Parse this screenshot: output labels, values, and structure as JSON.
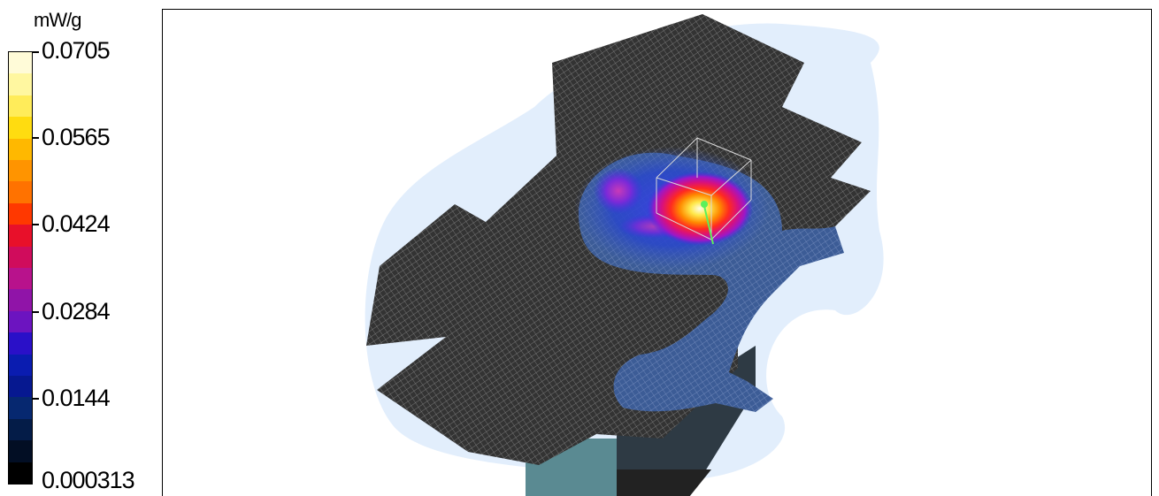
{
  "legend": {
    "unit": "mW/g",
    "ticks": [
      "0.0705",
      "0.0565",
      "0.0424",
      "0.0284",
      "0.0144",
      "0.000313"
    ],
    "colors": [
      "#fffbd8",
      "#fff7a0",
      "#ffec5a",
      "#ffdc10",
      "#ffb800",
      "#ff9400",
      "#ff7200",
      "#ff3800",
      "#e8102a",
      "#d00c5c",
      "#b8128c",
      "#9014a8",
      "#6c14c0",
      "#2a10c8",
      "#0a1cb0",
      "#061890",
      "#062870",
      "#041c48",
      "#020e24",
      "#000000"
    ]
  },
  "scene": {
    "halo_color": "#e2eefc",
    "grid_color": "#3a3a3a",
    "grid_line_color": "#9a9a9a",
    "phantom_color": "#5a8a92",
    "hotspot_colors": [
      "#fffde8",
      "#ffe84a",
      "#ff8a00",
      "#ff2a20",
      "#d61080",
      "#9a18c8",
      "#3a30e0",
      "#3a5cc0"
    ]
  }
}
